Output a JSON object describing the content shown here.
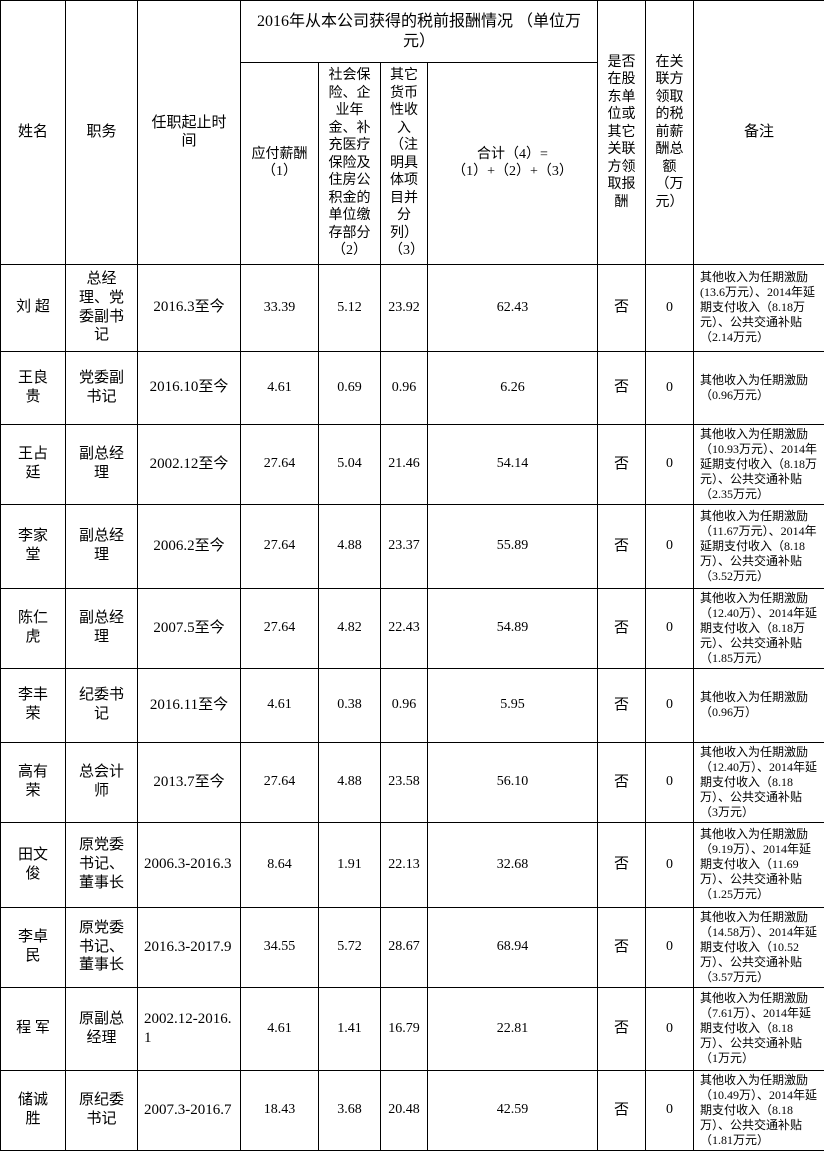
{
  "table": {
    "header": {
      "col_name": "姓名",
      "col_position": "职务",
      "col_term": "任职起止时间",
      "group_2016": "2016年从本公司获得的税前报酬情况 （单位万元）",
      "col_payable": "应付薪酬（1）",
      "col_social": "社会保险、企业年金、补充医疗保险及住房公积金的单位缴存部分（2）",
      "col_other": "其它货币性收入（注明具体项目并分列）（3）",
      "col_total": "合计（4）=（1）+（2）+（3）",
      "col_related": "是否在股东单位或其它关联方领取报酬",
      "col_related_amount": "在关联方领取的税前薪酬总额（万元）",
      "col_remarks": "备注"
    },
    "rows": [
      {
        "name": "刘 超",
        "position": "总经理、党委副书记",
        "term": "2016.3至今",
        "payable": "33.39",
        "social": "5.12",
        "other": "23.92",
        "total": "62.43",
        "related": "否",
        "related_amount": "0",
        "remarks": "其他收入为任期激励(13.6万元）、2014年延期支付收入（8.18万元）、公共交通补贴（2.14万元）"
      },
      {
        "name": "王良贵",
        "position": "党委副书记",
        "term": "2016.10至今",
        "payable": "4.61",
        "social": "0.69",
        "other": "0.96",
        "total": "6.26",
        "related": "否",
        "related_amount": "0",
        "remarks": "其他收入为任期激励（0.96万元）"
      },
      {
        "name": "王占廷",
        "position": "副总经理",
        "term": "2002.12至今",
        "payable": "27.64",
        "social": "5.04",
        "other": "21.46",
        "total": "54.14",
        "related": "否",
        "related_amount": "0",
        "remarks": "其他收入为任期激励（10.93万元）、2014年延期支付收入（8.18万元）、公共交通补贴（2.35万元）"
      },
      {
        "name": "李家堂",
        "position": "副总经理",
        "term": "2006.2至今",
        "payable": "27.64",
        "social": "4.88",
        "other": "23.37",
        "total": "55.89",
        "related": "否",
        "related_amount": "0",
        "remarks": "其他收入为任期激励（11.67万元）、2014年延期支付收入（8.18万）、公共交通补贴（3.52万元）"
      },
      {
        "name": "陈仁虎",
        "position": "副总经理",
        "term": "2007.5至今",
        "payable": "27.64",
        "social": "4.82",
        "other": "22.43",
        "total": "54.89",
        "related": "否",
        "related_amount": "0",
        "remarks": "其他收入为任期激励（12.40万）、2014年延期支付收入（8.18万元）、公共交通补贴（1.85万元）"
      },
      {
        "name": "李丰荣",
        "position": "纪委书记",
        "term": "2016.11至今",
        "payable": "4.61",
        "social": "0.38",
        "other": "0.96",
        "total": "5.95",
        "related": "否",
        "related_amount": "0",
        "remarks": "其他收入为任期激励（0.96万）"
      },
      {
        "name": "高有荣",
        "position": "总会计师",
        "term": "2013.7至今",
        "payable": "27.64",
        "social": "4.88",
        "other": "23.58",
        "total": "56.10",
        "related": "否",
        "related_amount": "0",
        "remarks": "其他收入为任期激励（12.40万）、2014年延期支付收入（8.18万）、公共交通补贴（3万元）"
      },
      {
        "name": "田文俊",
        "position": "原党委书记、董事长",
        "term": "2006.3-2016.3",
        "payable": "8.64",
        "social": "1.91",
        "other": "22.13",
        "total": "32.68",
        "related": "否",
        "related_amount": "0",
        "remarks": "其他收入为任期激励（9.19万）、2014年延期支付收入（11.69万）、公共交通补贴（1.25万元）"
      },
      {
        "name": "李卓民",
        "position": "原党委书记、董事长",
        "term": "2016.3-2017.9",
        "payable": "34.55",
        "social": "5.72",
        "other": "28.67",
        "total": "68.94",
        "related": "否",
        "related_amount": "0",
        "remarks": "其他收入为任期激励（14.58万）、2014年延期支付收入（10.52万）、公共交通补贴（3.57万元）"
      },
      {
        "name": "程 军",
        "position": "原副总经理",
        "term": "2002.12-2016.1",
        "payable": "4.61",
        "social": "1.41",
        "other": "16.79",
        "total": "22.81",
        "related": "否",
        "related_amount": "0",
        "remarks": "其他收入为任期激励（7.61万）、2014年延期支付收入（8.18万）、公共交通补贴（1万元）"
      },
      {
        "name": "储诚胜",
        "position": "原纪委书记",
        "term": "2007.3-2016.7",
        "payable": "18.43",
        "social": "3.68",
        "other": "20.48",
        "total": "42.59",
        "related": "否",
        "related_amount": "0",
        "remarks": "其他收入为任期激励（10.49万）、2014年延期支付收入（8.18万）、公共交通补贴（1.81万元）"
      }
    ]
  }
}
